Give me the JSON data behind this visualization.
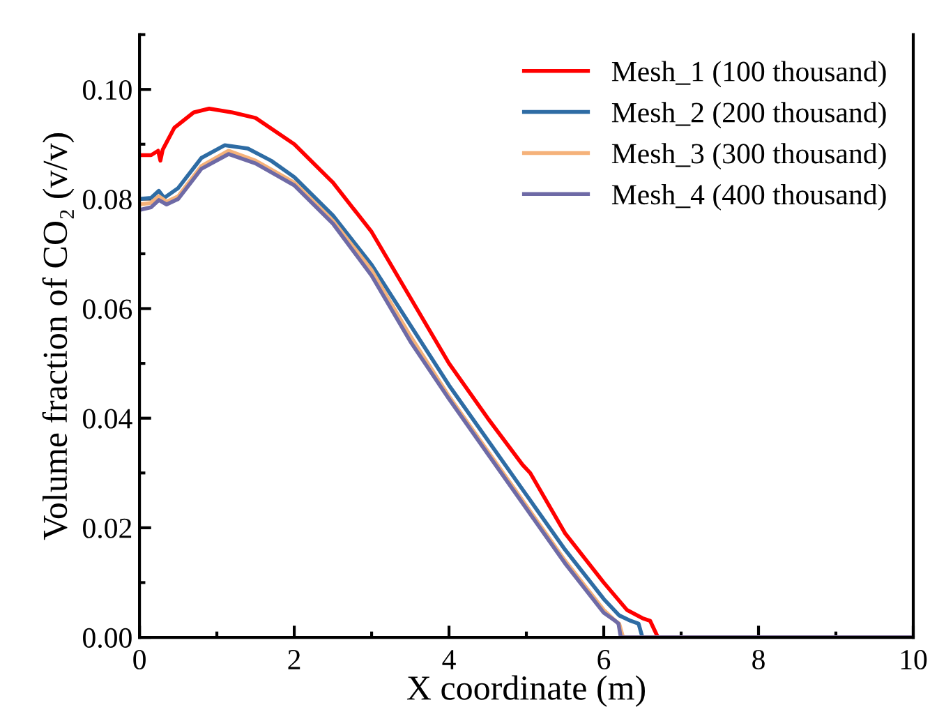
{
  "chart_data": {
    "type": "line",
    "xlabel": "X coordinate (m)",
    "ylabel": "Volume fraction of CO₂ (v/v)",
    "xlim": [
      0,
      10
    ],
    "ylim": [
      0,
      0.11
    ],
    "xticks": [
      0,
      2,
      4,
      6,
      8,
      10
    ],
    "yticks": [
      {
        "value": 0,
        "label": "0.00"
      },
      {
        "value": 0.02,
        "label": "0.02"
      },
      {
        "value": 0.04,
        "label": "0.04"
      },
      {
        "value": 0.06,
        "label": "0.06"
      },
      {
        "value": 0.08,
        "label": "0.08"
      },
      {
        "value": 0.1,
        "label": "0.10"
      }
    ],
    "grid": false,
    "legend": "top right",
    "marker": "none",
    "line_style": "solid",
    "series": [
      {
        "name": "Mesh_1 (100 thousand)",
        "color": "#ff0000",
        "x": [
          0,
          0.15,
          0.24,
          0.27,
          0.3,
          0.45,
          0.7,
          0.9,
          1.2,
          1.5,
          2.0,
          2.5,
          3.0,
          3.5,
          4.0,
          4.5,
          4.95,
          5.05,
          5.5,
          6.0,
          6.3,
          6.5,
          6.6,
          6.7,
          8,
          10
        ],
        "values": [
          0.088,
          0.088,
          0.0888,
          0.087,
          0.089,
          0.093,
          0.0958,
          0.0965,
          0.0958,
          0.0948,
          0.09,
          0.083,
          0.074,
          0.062,
          0.05,
          0.04,
          0.0315,
          0.03,
          0.019,
          0.01,
          0.005,
          0.0035,
          0.003,
          0,
          0,
          0
        ]
      },
      {
        "name": "Mesh_2 (200 thousand)",
        "color": "#2e6ca4",
        "x": [
          0,
          0.15,
          0.25,
          0.32,
          0.5,
          0.8,
          1.1,
          1.4,
          1.7,
          2.0,
          2.5,
          3.0,
          3.5,
          4.0,
          4.5,
          5.0,
          5.5,
          6.0,
          6.2,
          6.35,
          6.45,
          6.5,
          8,
          10
        ],
        "values": [
          0.08,
          0.0802,
          0.0815,
          0.0802,
          0.082,
          0.0875,
          0.0898,
          0.0892,
          0.087,
          0.084,
          0.077,
          0.068,
          0.057,
          0.046,
          0.036,
          0.026,
          0.016,
          0.007,
          0.004,
          0.003,
          0.0025,
          0,
          0,
          0
        ]
      },
      {
        "name": "Mesh_3 (300 thousand)",
        "color": "#f5b27a",
        "x": [
          0,
          0.15,
          0.25,
          0.35,
          0.5,
          0.8,
          1.15,
          1.5,
          2.0,
          2.5,
          3.0,
          3.5,
          4.0,
          4.5,
          5.0,
          5.5,
          6.0,
          6.15,
          6.2,
          6.25,
          8,
          10
        ],
        "values": [
          0.079,
          0.0793,
          0.0805,
          0.0795,
          0.0805,
          0.086,
          0.0888,
          0.087,
          0.083,
          0.076,
          0.067,
          0.055,
          0.044,
          0.034,
          0.024,
          0.014,
          0.005,
          0.003,
          0.0025,
          0,
          0,
          0
        ]
      },
      {
        "name": "Mesh_4 (400 thousand)",
        "color": "#6e6aa6",
        "x": [
          0,
          0.15,
          0.25,
          0.35,
          0.5,
          0.8,
          1.15,
          1.5,
          2.0,
          2.5,
          3.0,
          3.5,
          4.0,
          4.5,
          5.0,
          5.5,
          6.0,
          6.15,
          6.19,
          6.22,
          8,
          10
        ],
        "values": [
          0.078,
          0.0785,
          0.0798,
          0.079,
          0.08,
          0.0855,
          0.0882,
          0.0865,
          0.0825,
          0.0755,
          0.066,
          0.054,
          0.0435,
          0.0335,
          0.0235,
          0.0135,
          0.0045,
          0.003,
          0.0025,
          0,
          0,
          0
        ]
      }
    ]
  }
}
